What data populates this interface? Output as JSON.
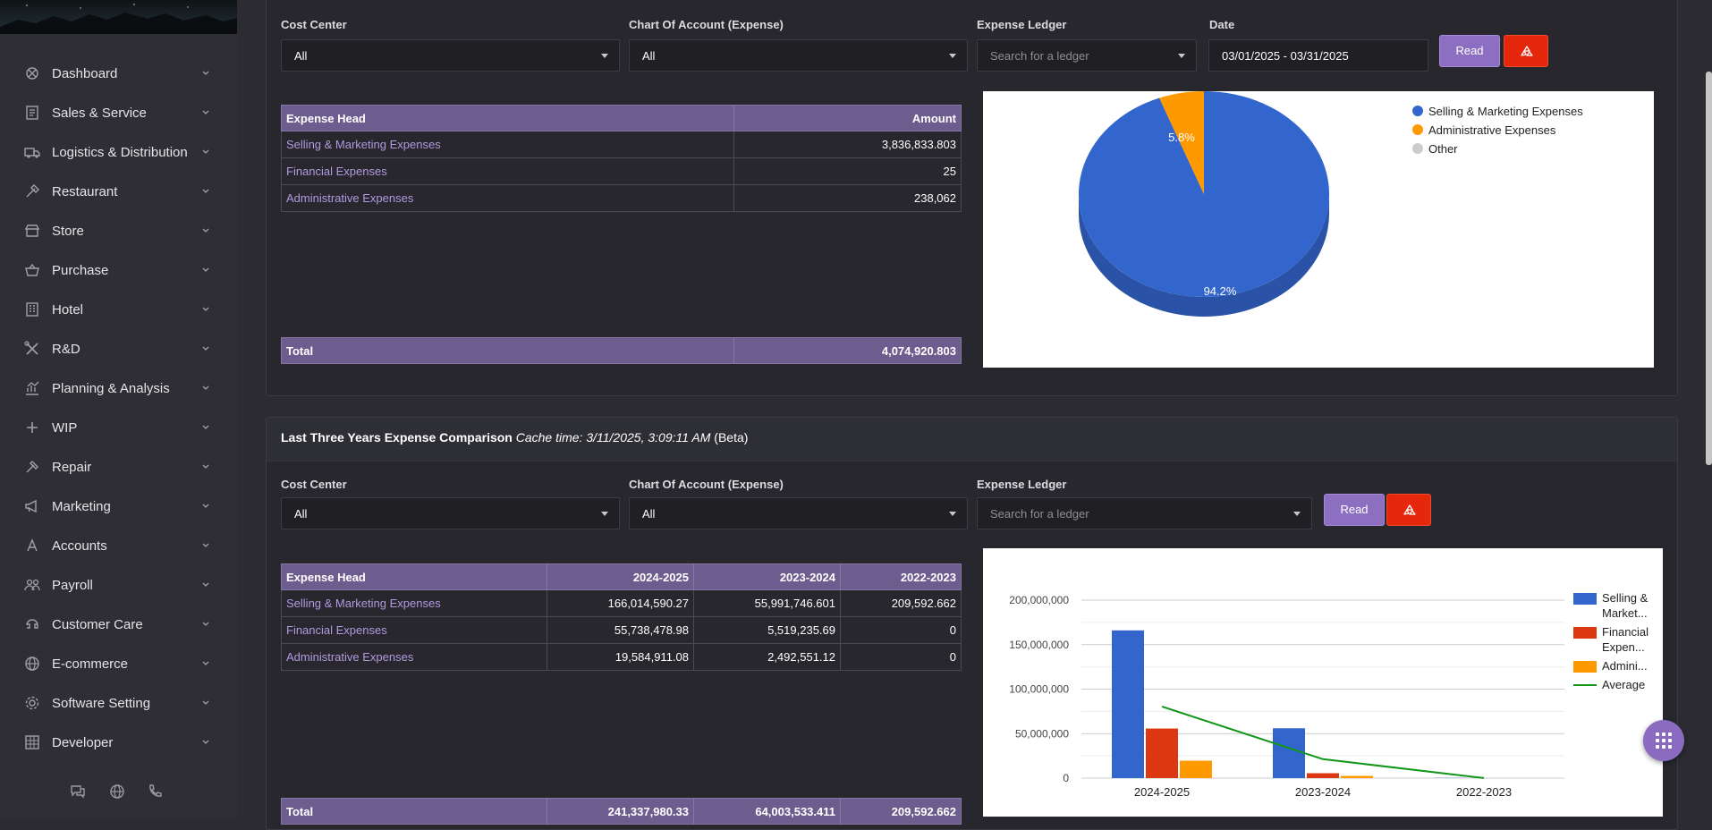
{
  "sidebar": {
    "items": [
      {
        "label": "Dashboard",
        "icon": "dashboard-icon"
      },
      {
        "label": "Sales & Service",
        "icon": "receipt-icon"
      },
      {
        "label": "Logistics & Distribution",
        "icon": "truck-icon"
      },
      {
        "label": "Restaurant",
        "icon": "utensil-icon"
      },
      {
        "label": "Store",
        "icon": "store-icon"
      },
      {
        "label": "Purchase",
        "icon": "basket-icon"
      },
      {
        "label": "Hotel",
        "icon": "hotel-icon"
      },
      {
        "label": "R&D",
        "icon": "tools-icon"
      },
      {
        "label": "Planning & Analysis",
        "icon": "chart-icon"
      },
      {
        "label": "WIP",
        "icon": "plus-icon"
      },
      {
        "label": "Repair",
        "icon": "hammer-icon"
      },
      {
        "label": "Marketing",
        "icon": "megaphone-icon"
      },
      {
        "label": "Accounts",
        "icon": "accounts-icon"
      },
      {
        "label": "Payroll",
        "icon": "users-icon"
      },
      {
        "label": "Customer Care",
        "icon": "support-icon"
      },
      {
        "label": "E-commerce",
        "icon": "globe-icon"
      },
      {
        "label": "Software Setting",
        "icon": "gear-icon"
      },
      {
        "label": "Developer",
        "icon": "code-icon"
      }
    ],
    "footer_icons": [
      "chat-icon",
      "globe-icon",
      "phone-icon"
    ]
  },
  "panel1": {
    "filters": {
      "cost_center_label": "Cost Center",
      "cost_center_value": "All",
      "coa_label": "Chart Of Account (Expense)",
      "coa_value": "All",
      "ledger_label": "Expense Ledger",
      "ledger_placeholder": "Search for a ledger",
      "date_label": "Date",
      "date_value": "03/01/2025 - 03/31/2025",
      "read_label": "Read"
    },
    "table": {
      "headers": [
        "Expense Head",
        "Amount"
      ],
      "rows": [
        [
          "Selling & Marketing Expenses",
          "3,836,833.803"
        ],
        [
          "Financial Expenses",
          "25"
        ],
        [
          "Administrative Expenses",
          "238,062"
        ]
      ],
      "total_label": "Total",
      "total_value": "4,074,920.803"
    },
    "pie_labels": {
      "big": "94.2%",
      "small": "5.8%"
    }
  },
  "panel2": {
    "title": "Last Three Years Expense Comparison",
    "cache": "Cache time: 3/11/2025, 3:09:11 AM",
    "beta": "(Beta)",
    "filters": {
      "cost_center_label": "Cost Center",
      "cost_center_value": "All",
      "coa_label": "Chart Of Account (Expense)",
      "coa_value": "All",
      "ledger_label": "Expense Ledger",
      "ledger_placeholder": "Search for a ledger",
      "read_label": "Read"
    },
    "table": {
      "headers": [
        "Expense Head",
        "2024-2025",
        "2023-2024",
        "2022-2023"
      ],
      "rows": [
        [
          "Selling & Marketing Expenses",
          "166,014,590.27",
          "55,991,746.601",
          "209,592.662"
        ],
        [
          "Financial Expenses",
          "55,738,478.98",
          "5,519,235.69",
          "0"
        ],
        [
          "Administrative Expenses",
          "19,584,911.08",
          "2,492,551.12",
          "0"
        ]
      ],
      "total_label": "Total",
      "total_values": [
        "241,337,980.33",
        "64,003,533.411",
        "209,592.662"
      ]
    }
  },
  "chart_data": [
    {
      "type": "pie",
      "legend_position": "top-right",
      "slices": [
        {
          "label": "Selling & Marketing Expenses",
          "value": 94.2,
          "color": "#3366cc"
        },
        {
          "label": "Administrative Expenses",
          "value": 5.8,
          "color": "#ff9900"
        },
        {
          "label": "Other",
          "value": 0,
          "color": "#cccccc"
        }
      ]
    },
    {
      "type": "bar",
      "categories": [
        "2024-2025",
        "2023-2024",
        "2022-2023"
      ],
      "ylim": [
        0,
        200000000
      ],
      "yticks": [
        "0",
        "50,000,000",
        "100,000,000",
        "150,000,000",
        "200,000,000"
      ],
      "legend_position": "right",
      "series": [
        {
          "name": "Selling & Market...",
          "label_lines": [
            "Selling &",
            "Market..."
          ],
          "color": "#3366cc",
          "values": [
            166014590.27,
            55991746.601,
            209592.662
          ]
        },
        {
          "name": "Financial Expen...",
          "label_lines": [
            "Financial",
            "Expen..."
          ],
          "color": "#dc3912",
          "values": [
            55738478.98,
            5519235.69,
            0
          ]
        },
        {
          "name": "Admini...",
          "label_lines": [
            "Admini..."
          ],
          "color": "#ff9900",
          "values": [
            19584911.08,
            2492551.12,
            0
          ]
        },
        {
          "name": "Average",
          "label_lines": [
            "Average"
          ],
          "color": "#109618",
          "type": "line",
          "values": [
            80445993.44,
            21334511.14,
            69864.22
          ]
        }
      ]
    }
  ]
}
